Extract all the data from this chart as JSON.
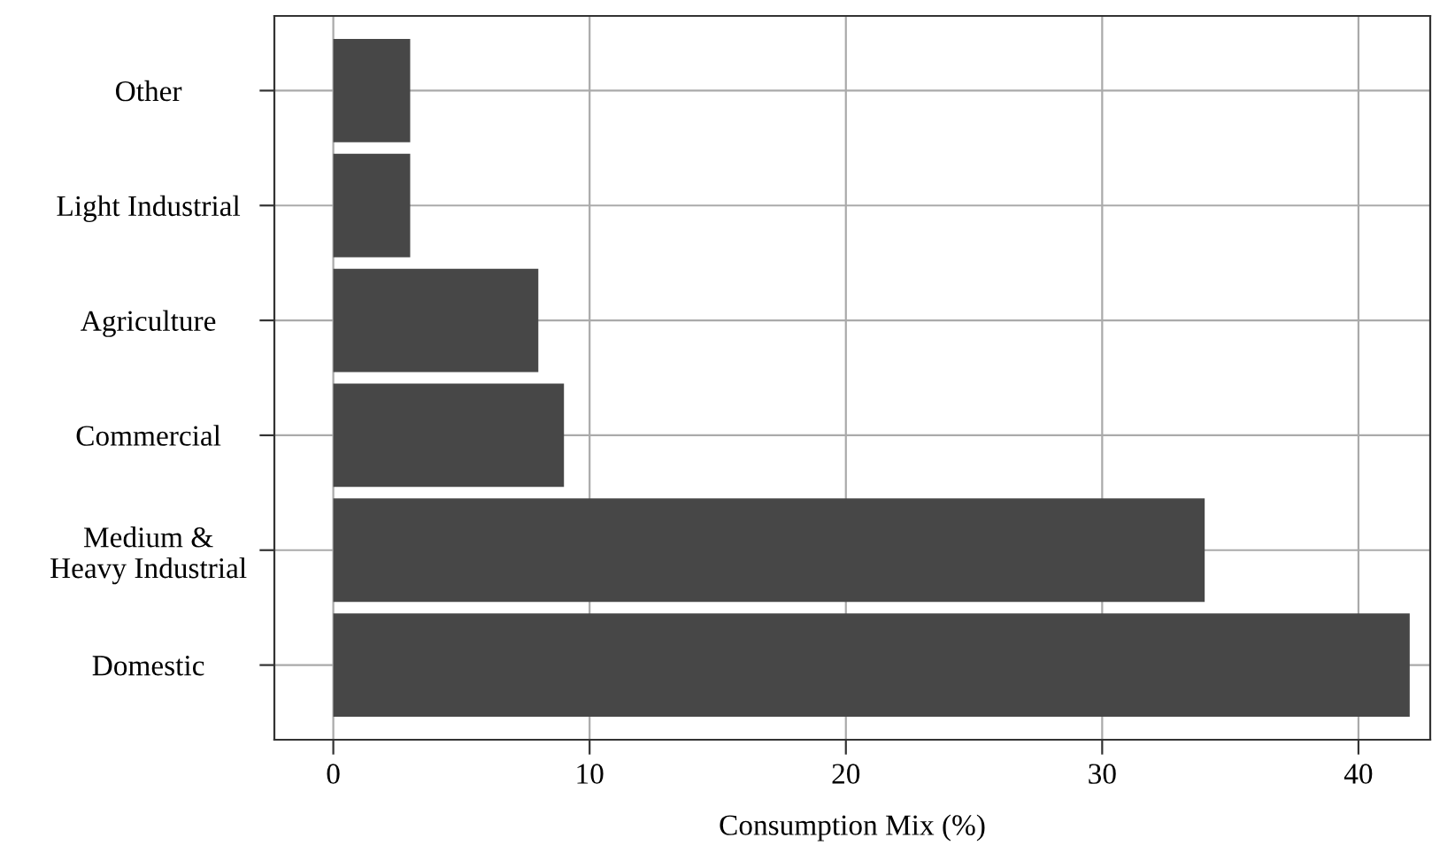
{
  "chart_data": {
    "type": "bar",
    "orientation": "horizontal",
    "xlabel": "Consumption Mix (%)",
    "categories": [
      "Other",
      "Light Industrial",
      "Agriculture",
      "Commercial",
      "Medium &\nHeavy Industrial",
      "Domestic"
    ],
    "values": [
      3,
      3,
      8,
      9,
      34,
      42
    ],
    "color": "#474747",
    "xlim": [
      -2.3,
      42.8
    ],
    "xticks": [
      0,
      10,
      20,
      30,
      40
    ],
    "grid": true
  }
}
